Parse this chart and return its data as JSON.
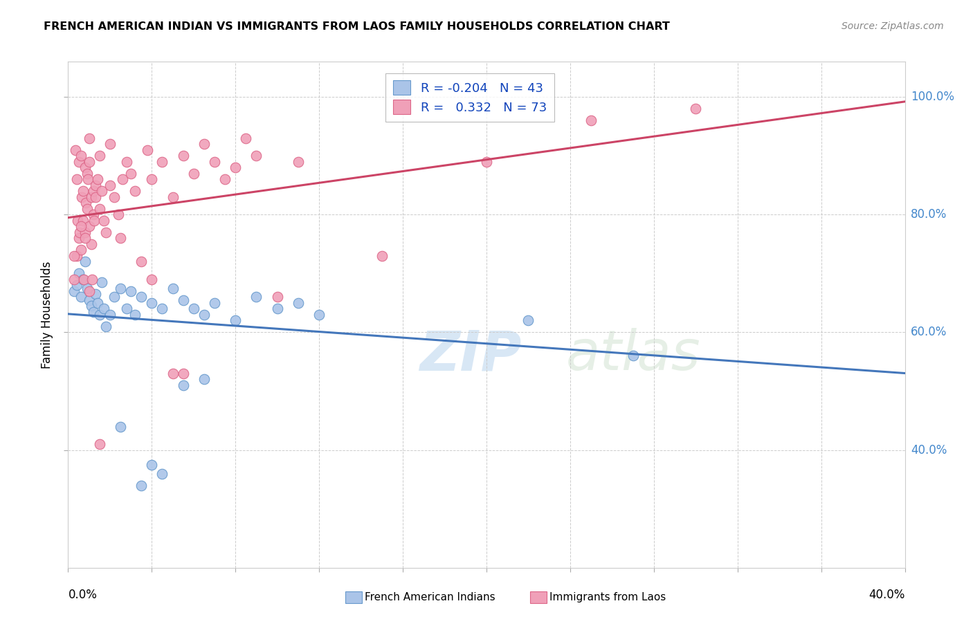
{
  "title": "FRENCH AMERICAN INDIAN VS IMMIGRANTS FROM LAOS FAMILY HOUSEHOLDS CORRELATION CHART",
  "source": "Source: ZipAtlas.com",
  "ylabel": "Family Households",
  "watermark": "ZIPatlas",
  "xlim": [
    0.0,
    40.0
  ],
  "ylim": [
    20.0,
    106.0
  ],
  "yticks": [
    40.0,
    60.0,
    80.0,
    100.0
  ],
  "xticks": [
    0,
    4,
    8,
    12,
    16,
    20,
    24,
    28,
    32,
    36,
    40
  ],
  "blue_color": "#aac4e8",
  "pink_color": "#f0a0b8",
  "blue_edge": "#6699cc",
  "pink_edge": "#dd6688",
  "trend_blue": "#4477bb",
  "trend_pink": "#cc4466",
  "blue_scatter": [
    [
      0.3,
      67.0
    ],
    [
      0.4,
      68.0
    ],
    [
      0.5,
      70.0
    ],
    [
      0.6,
      66.0
    ],
    [
      0.7,
      69.0
    ],
    [
      0.8,
      72.0
    ],
    [
      0.9,
      67.5
    ],
    [
      1.0,
      65.5
    ],
    [
      1.1,
      64.5
    ],
    [
      1.2,
      63.5
    ],
    [
      1.3,
      66.5
    ],
    [
      1.4,
      65.0
    ],
    [
      1.5,
      63.0
    ],
    [
      1.6,
      68.5
    ],
    [
      1.7,
      64.0
    ],
    [
      1.8,
      61.0
    ],
    [
      2.0,
      63.0
    ],
    [
      2.2,
      66.0
    ],
    [
      2.5,
      67.5
    ],
    [
      2.8,
      64.0
    ],
    [
      3.0,
      67.0
    ],
    [
      3.2,
      63.0
    ],
    [
      3.5,
      66.0
    ],
    [
      4.0,
      65.0
    ],
    [
      4.5,
      64.0
    ],
    [
      5.0,
      67.5
    ],
    [
      5.5,
      65.5
    ],
    [
      6.0,
      64.0
    ],
    [
      6.5,
      63.0
    ],
    [
      7.0,
      65.0
    ],
    [
      8.0,
      62.0
    ],
    [
      9.0,
      66.0
    ],
    [
      10.0,
      64.0
    ],
    [
      11.0,
      65.0
    ],
    [
      12.0,
      63.0
    ],
    [
      5.5,
      51.0
    ],
    [
      6.5,
      52.0
    ],
    [
      2.5,
      44.0
    ],
    [
      4.0,
      37.5
    ],
    [
      4.5,
      36.0
    ],
    [
      3.5,
      34.0
    ],
    [
      27.0,
      56.0
    ],
    [
      22.0,
      62.0
    ]
  ],
  "pink_scatter": [
    [
      0.3,
      69.0
    ],
    [
      0.35,
      91.0
    ],
    [
      0.4,
      73.0
    ],
    [
      0.4,
      86.0
    ],
    [
      0.45,
      79.0
    ],
    [
      0.5,
      76.0
    ],
    [
      0.5,
      89.0
    ],
    [
      0.55,
      77.0
    ],
    [
      0.6,
      74.0
    ],
    [
      0.6,
      90.0
    ],
    [
      0.65,
      83.0
    ],
    [
      0.7,
      79.0
    ],
    [
      0.7,
      84.0
    ],
    [
      0.75,
      69.0
    ],
    [
      0.8,
      77.0
    ],
    [
      0.8,
      88.0
    ],
    [
      0.85,
      82.0
    ],
    [
      0.9,
      81.0
    ],
    [
      0.9,
      87.0
    ],
    [
      0.95,
      86.0
    ],
    [
      1.0,
      78.0
    ],
    [
      1.0,
      89.0
    ],
    [
      1.0,
      93.0
    ],
    [
      1.1,
      75.0
    ],
    [
      1.1,
      83.0
    ],
    [
      1.15,
      69.0
    ],
    [
      1.2,
      80.0
    ],
    [
      1.2,
      84.0
    ],
    [
      1.25,
      79.0
    ],
    [
      1.3,
      83.0
    ],
    [
      1.3,
      85.0
    ],
    [
      1.4,
      86.0
    ],
    [
      1.5,
      81.0
    ],
    [
      1.5,
      90.0
    ],
    [
      1.6,
      84.0
    ],
    [
      1.7,
      79.0
    ],
    [
      1.8,
      77.0
    ],
    [
      2.0,
      85.0
    ],
    [
      2.0,
      92.0
    ],
    [
      2.2,
      83.0
    ],
    [
      2.4,
      80.0
    ],
    [
      2.6,
      86.0
    ],
    [
      2.8,
      89.0
    ],
    [
      3.0,
      87.0
    ],
    [
      3.2,
      84.0
    ],
    [
      3.5,
      72.0
    ],
    [
      3.8,
      91.0
    ],
    [
      4.0,
      86.0
    ],
    [
      4.0,
      69.0
    ],
    [
      4.5,
      89.0
    ],
    [
      5.0,
      83.0
    ],
    [
      5.0,
      53.0
    ],
    [
      5.5,
      53.0
    ],
    [
      5.5,
      90.0
    ],
    [
      6.0,
      87.0
    ],
    [
      6.5,
      92.0
    ],
    [
      7.0,
      89.0
    ],
    [
      7.5,
      86.0
    ],
    [
      8.0,
      88.0
    ],
    [
      8.5,
      93.0
    ],
    [
      9.0,
      90.0
    ],
    [
      10.0,
      66.0
    ],
    [
      11.0,
      89.0
    ],
    [
      1.5,
      41.0
    ],
    [
      15.0,
      73.0
    ],
    [
      20.0,
      89.0
    ],
    [
      25.0,
      96.0
    ],
    [
      30.0,
      98.0
    ],
    [
      0.3,
      73.0
    ],
    [
      0.6,
      78.0
    ],
    [
      0.8,
      76.0
    ],
    [
      1.0,
      67.0
    ],
    [
      2.5,
      76.0
    ]
  ]
}
